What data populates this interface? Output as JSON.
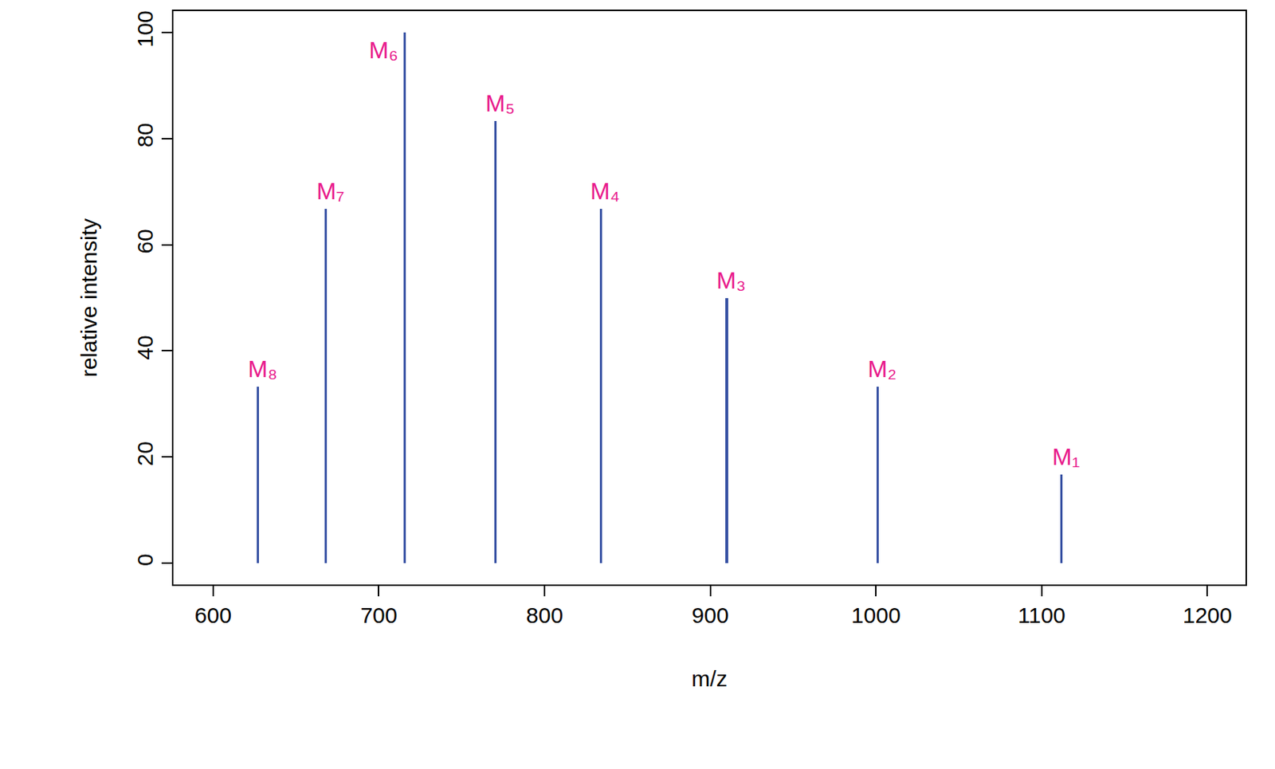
{
  "chart_data": {
    "type": "bar",
    "x": [
      627,
      668,
      715.5,
      770.5,
      834,
      910,
      1001,
      1112
    ],
    "values": [
      33.3,
      66.7,
      100,
      83.3,
      66.7,
      50,
      33.3,
      16.7
    ],
    "annotations": [
      "M₈",
      "M₇",
      "M₆",
      "M₅",
      "M₄",
      "M₃",
      "M₂",
      "M₁"
    ],
    "color": "#3953a4",
    "x_label": "m/z",
    "y_label": "relative intensity",
    "xlim": [
      576,
      1223
    ],
    "ylim": [
      -4,
      104
    ],
    "xticks": [
      600,
      700,
      800,
      900,
      1000,
      1100,
      1200
    ],
    "yticks": [
      0,
      20,
      40,
      60,
      80,
      100
    ],
    "grid": false
  }
}
